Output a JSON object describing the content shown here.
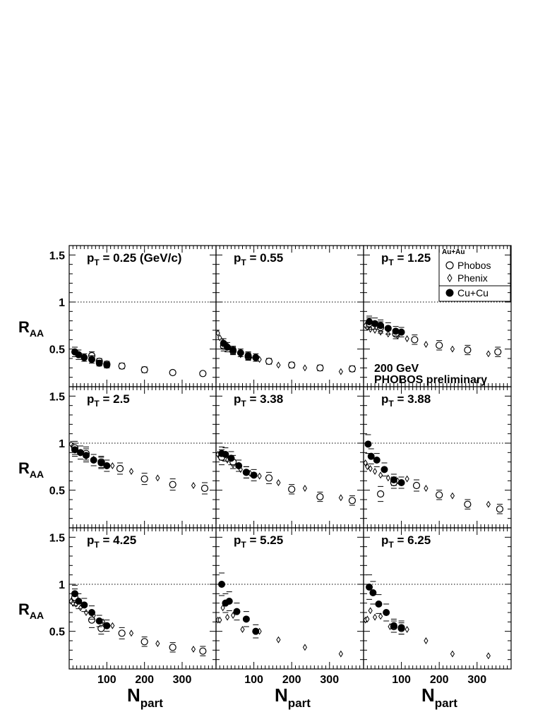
{
  "labels": {
    "y_main": "R",
    "y_sub": "AA",
    "x_main": "N",
    "x_sub": "part",
    "pt_prefix": "p",
    "pt_sub": "T",
    "energy": "200 GeV",
    "collab": "PHOBOS preliminary"
  },
  "legend": {
    "title": "Au+Au",
    "entries": [
      {
        "marker": "open-circle",
        "label": "Phobos"
      },
      {
        "marker": "open-diamond",
        "label": "Phenix"
      },
      {
        "marker": "filled-circle",
        "label": "Cu+Cu"
      }
    ]
  },
  "chart_data": {
    "type": "scatter",
    "grid": false,
    "layout": "3x3 panels, shared axes",
    "x_axis": {
      "range": [
        0,
        390
      ],
      "ticks": [
        100,
        200,
        300
      ],
      "tick_labels": [
        "100",
        "200",
        "300"
      ]
    },
    "y_axis": {
      "range": [
        0.1,
        1.6
      ],
      "ticks": [
        0.5,
        1,
        1.5
      ],
      "tick_labels": [
        "0.5",
        "1",
        "1.5"
      ]
    },
    "reference_line": 1,
    "panels": [
      {
        "label": "= 0.25 (GeV/c)",
        "cucu": [
          [
            15,
            0.47,
            0.05
          ],
          [
            25,
            0.44,
            0.05
          ],
          [
            40,
            0.41,
            0.04
          ],
          [
            60,
            0.39,
            0.04
          ],
          [
            80,
            0.35,
            0.03
          ],
          [
            100,
            0.33,
            0.03
          ]
        ],
        "phobos": [
          [
            60,
            0.43,
            0.04
          ],
          [
            80,
            0.37,
            0.03
          ],
          [
            100,
            0.34,
            0.03
          ],
          [
            140,
            0.32,
            0.03
          ],
          [
            200,
            0.28,
            0.03
          ],
          [
            275,
            0.25,
            0.02
          ],
          [
            355,
            0.24,
            0.02
          ]
        ],
        "phenix": []
      },
      {
        "label": "= 0.55",
        "cucu": [
          [
            20,
            0.56,
            0.05
          ],
          [
            30,
            0.52,
            0.05
          ],
          [
            45,
            0.49,
            0.04
          ],
          [
            65,
            0.46,
            0.04
          ],
          [
            85,
            0.43,
            0.04
          ],
          [
            105,
            0.41,
            0.04
          ]
        ],
        "phobos": [
          [
            20,
            0.53,
            0.05
          ],
          [
            45,
            0.48,
            0.04
          ],
          [
            85,
            0.42,
            0.04
          ],
          [
            140,
            0.37,
            0.03
          ],
          [
            200,
            0.33,
            0.03
          ],
          [
            275,
            0.3,
            0.03
          ],
          [
            360,
            0.29,
            0.03
          ]
        ],
        "phenix": [
          [
            5,
            0.67
          ],
          [
            10,
            0.62
          ],
          [
            18,
            0.58
          ],
          [
            30,
            0.54
          ],
          [
            45,
            0.49
          ],
          [
            65,
            0.44
          ],
          [
            90,
            0.41
          ],
          [
            115,
            0.39
          ],
          [
            165,
            0.33
          ],
          [
            235,
            0.3
          ],
          [
            330,
            0.26
          ]
        ]
      },
      {
        "label": "= 1.25",
        "cucu": [
          [
            15,
            0.79,
            0.06
          ],
          [
            30,
            0.77,
            0.06
          ],
          [
            45,
            0.75,
            0.06
          ],
          [
            65,
            0.72,
            0.06
          ],
          [
            85,
            0.69,
            0.05
          ],
          [
            100,
            0.68,
            0.05
          ]
        ],
        "phobos": [
          [
            15,
            0.77,
            0.06
          ],
          [
            45,
            0.73,
            0.06
          ],
          [
            85,
            0.66,
            0.05
          ],
          [
            135,
            0.6,
            0.05
          ],
          [
            200,
            0.54,
            0.05
          ],
          [
            275,
            0.49,
            0.05
          ],
          [
            355,
            0.47,
            0.05
          ]
        ],
        "phenix": [
          [
            5,
            0.75
          ],
          [
            10,
            0.73
          ],
          [
            18,
            0.71
          ],
          [
            30,
            0.7
          ],
          [
            45,
            0.68
          ],
          [
            65,
            0.66
          ],
          [
            90,
            0.64
          ],
          [
            115,
            0.61
          ],
          [
            165,
            0.55
          ],
          [
            235,
            0.5
          ],
          [
            330,
            0.45
          ]
        ]
      },
      {
        "label": "= 2.5",
        "cucu": [
          [
            15,
            0.93,
            0.07
          ],
          [
            30,
            0.9,
            0.07
          ],
          [
            45,
            0.87,
            0.07
          ],
          [
            65,
            0.82,
            0.06
          ],
          [
            85,
            0.79,
            0.06
          ],
          [
            100,
            0.76,
            0.06
          ]
        ],
        "phobos": [
          [
            15,
            0.95,
            0.07
          ],
          [
            45,
            0.89,
            0.07
          ],
          [
            85,
            0.8,
            0.06
          ],
          [
            135,
            0.73,
            0.06
          ],
          [
            200,
            0.62,
            0.06
          ],
          [
            275,
            0.56,
            0.06
          ],
          [
            360,
            0.52,
            0.06
          ]
        ],
        "phenix": [
          [
            5,
            0.99
          ],
          [
            10,
            0.97
          ],
          [
            18,
            0.94
          ],
          [
            30,
            0.9
          ],
          [
            45,
            0.86
          ],
          [
            65,
            0.83
          ],
          [
            90,
            0.8
          ],
          [
            115,
            0.76
          ],
          [
            165,
            0.7
          ],
          [
            235,
            0.63
          ],
          [
            330,
            0.55
          ]
        ]
      },
      {
        "label": "= 3.38",
        "cucu": [
          [
            15,
            0.89,
            0.07
          ],
          [
            25,
            0.88,
            0.07
          ],
          [
            40,
            0.84,
            0.07
          ],
          [
            60,
            0.76,
            0.06
          ],
          [
            80,
            0.69,
            0.06
          ],
          [
            100,
            0.66,
            0.06
          ]
        ],
        "phobos": [
          [
            15,
            0.85,
            0.08
          ],
          [
            45,
            0.8,
            0.07
          ],
          [
            80,
            0.69,
            0.06
          ],
          [
            140,
            0.63,
            0.06
          ],
          [
            200,
            0.51,
            0.05
          ],
          [
            275,
            0.43,
            0.05
          ],
          [
            360,
            0.39,
            0.05
          ]
        ],
        "phenix": [
          [
            5,
            0.88
          ],
          [
            10,
            0.86
          ],
          [
            18,
            0.84
          ],
          [
            30,
            0.82
          ],
          [
            45,
            0.77
          ],
          [
            65,
            0.72
          ],
          [
            90,
            0.68
          ],
          [
            115,
            0.65
          ],
          [
            165,
            0.58
          ],
          [
            235,
            0.52
          ],
          [
            330,
            0.42
          ]
        ]
      },
      {
        "label": "= 3.88",
        "cucu": [
          [
            12,
            0.99,
            0.1
          ],
          [
            20,
            0.86,
            0.08
          ],
          [
            35,
            0.82,
            0.07
          ],
          [
            55,
            0.72,
            0.07
          ],
          [
            80,
            0.61,
            0.06
          ],
          [
            100,
            0.58,
            0.06
          ]
        ],
        "phobos": [
          [
            45,
            0.46,
            0.08
          ],
          [
            80,
            0.58,
            0.06
          ],
          [
            140,
            0.55,
            0.06
          ],
          [
            200,
            0.45,
            0.05
          ],
          [
            275,
            0.35,
            0.05
          ],
          [
            360,
            0.3,
            0.05
          ]
        ],
        "phenix": [
          [
            5,
            0.79
          ],
          [
            10,
            0.75
          ],
          [
            18,
            0.73
          ],
          [
            30,
            0.7
          ],
          [
            45,
            0.66
          ],
          [
            65,
            0.63
          ],
          [
            90,
            0.6
          ],
          [
            115,
            0.62
          ],
          [
            165,
            0.52
          ],
          [
            235,
            0.44
          ],
          [
            330,
            0.35
          ]
        ]
      },
      {
        "label": "= 4.25",
        "cucu": [
          [
            15,
            0.9,
            0.09
          ],
          [
            25,
            0.82,
            0.08
          ],
          [
            40,
            0.78,
            0.07
          ],
          [
            60,
            0.7,
            0.07
          ],
          [
            80,
            0.61,
            0.06
          ],
          [
            100,
            0.56,
            0.06
          ]
        ],
        "phobos": [
          [
            15,
            0.86,
            0.09
          ],
          [
            60,
            0.62,
            0.08
          ],
          [
            85,
            0.53,
            0.06
          ],
          [
            140,
            0.48,
            0.06
          ],
          [
            200,
            0.39,
            0.05
          ],
          [
            275,
            0.33,
            0.05
          ],
          [
            355,
            0.29,
            0.05
          ]
        ],
        "phenix": [
          [
            5,
            0.82
          ],
          [
            10,
            0.8
          ],
          [
            18,
            0.79
          ],
          [
            30,
            0.75
          ],
          [
            45,
            0.7
          ],
          [
            65,
            0.67
          ],
          [
            90,
            0.6
          ],
          [
            115,
            0.56
          ],
          [
            165,
            0.48
          ],
          [
            235,
            0.37
          ],
          [
            330,
            0.31
          ]
        ]
      },
      {
        "label": "= 5.25",
        "cucu": [
          [
            15,
            1.0,
            0.12
          ],
          [
            25,
            0.8,
            0.1
          ],
          [
            35,
            0.82,
            0.1
          ],
          [
            55,
            0.71,
            0.09
          ],
          [
            80,
            0.63,
            0.08
          ],
          [
            105,
            0.5,
            0.07
          ]
        ],
        "phobos": [],
        "phenix": [
          [
            5,
            0.62
          ],
          [
            10,
            0.62
          ],
          [
            18,
            0.75
          ],
          [
            30,
            0.65
          ],
          [
            45,
            0.67
          ],
          [
            70,
            0.52
          ],
          [
            115,
            0.5
          ],
          [
            165,
            0.41
          ],
          [
            235,
            0.33
          ],
          [
            330,
            0.26
          ]
        ]
      },
      {
        "label": "= 6.25",
        "cucu": [
          [
            15,
            0.97,
            0.13
          ],
          [
            25,
            0.91,
            0.12
          ],
          [
            40,
            0.79,
            0.1
          ],
          [
            60,
            0.7,
            0.09
          ],
          [
            80,
            0.56,
            0.07
          ],
          [
            100,
            0.54,
            0.07
          ]
        ],
        "phobos": [
          [
            80,
            0.55,
            0.06
          ],
          [
            100,
            0.53,
            0.06
          ]
        ],
        "phenix": [
          [
            5,
            0.62
          ],
          [
            10,
            0.63
          ],
          [
            18,
            0.72
          ],
          [
            30,
            0.65
          ],
          [
            45,
            0.66
          ],
          [
            70,
            0.55
          ],
          [
            115,
            0.52
          ],
          [
            165,
            0.4
          ],
          [
            235,
            0.26
          ],
          [
            330,
            0.24
          ]
        ]
      }
    ]
  }
}
